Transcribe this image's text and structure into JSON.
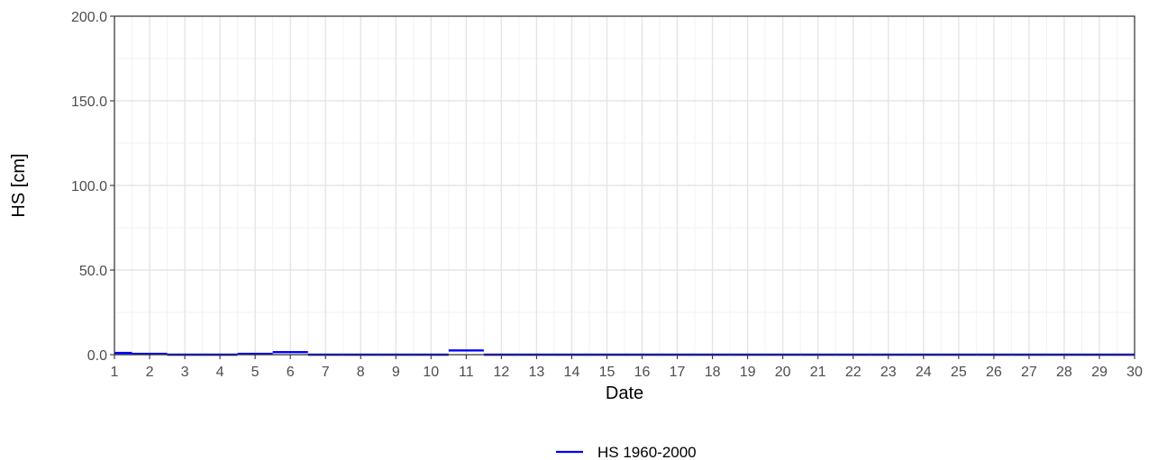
{
  "chart_data": {
    "type": "line",
    "xlabel": "Date",
    "ylabel": "HS [cm]",
    "xlim": [
      1,
      30
    ],
    "ylim": [
      0,
      200
    ],
    "x_ticks": [
      1,
      2,
      3,
      4,
      5,
      6,
      7,
      8,
      9,
      10,
      11,
      12,
      13,
      14,
      15,
      16,
      17,
      18,
      19,
      20,
      21,
      22,
      23,
      24,
      25,
      26,
      27,
      28,
      29,
      30
    ],
    "x_tick_labels": [
      "1",
      "2",
      "3",
      "4",
      "5",
      "6",
      "7",
      "8",
      "9",
      "10",
      "11",
      "12",
      "13",
      "14",
      "15",
      "16",
      "17",
      "18",
      "19",
      "20",
      "21",
      "22",
      "23",
      "24",
      "25",
      "26",
      "27",
      "28",
      "29",
      "30"
    ],
    "y_ticks": [
      0,
      50,
      100,
      150,
      200
    ],
    "y_tick_labels": [
      "0.0",
      "50.0",
      "100.0",
      "150.0",
      "200.0"
    ],
    "grid": true,
    "legend_position": "bottom",
    "series": [
      {
        "name": "HS 1960-2000",
        "color": "#0000ff",
        "style": "step",
        "points": [
          {
            "day": 1,
            "value": 1
          },
          {
            "day": 2,
            "value": 0.5
          },
          {
            "day": 3,
            "value": 0
          },
          {
            "day": 4,
            "value": 0
          },
          {
            "day": 5,
            "value": 0.5
          },
          {
            "day": 6,
            "value": 1.5
          },
          {
            "day": 7,
            "value": 0
          },
          {
            "day": 8,
            "value": 0
          },
          {
            "day": 9,
            "value": 0
          },
          {
            "day": 10,
            "value": 0
          },
          {
            "day": 11,
            "value": 2.5
          },
          {
            "day": 12,
            "value": 0
          },
          {
            "day": 13,
            "value": 0
          },
          {
            "day": 14,
            "value": 0
          },
          {
            "day": 15,
            "value": 0
          },
          {
            "day": 16,
            "value": 0
          },
          {
            "day": 17,
            "value": 0
          },
          {
            "day": 18,
            "value": 0
          },
          {
            "day": 19,
            "value": 0
          },
          {
            "day": 20,
            "value": 0
          },
          {
            "day": 21,
            "value": 0
          },
          {
            "day": 22,
            "value": 0
          },
          {
            "day": 23,
            "value": 0
          },
          {
            "day": 24,
            "value": 0
          },
          {
            "day": 25,
            "value": 0
          },
          {
            "day": 26,
            "value": 0
          },
          {
            "day": 27,
            "value": 0
          },
          {
            "day": 28,
            "value": 0
          },
          {
            "day": 29,
            "value": 0
          },
          {
            "day": 30,
            "value": 0
          }
        ]
      }
    ]
  }
}
